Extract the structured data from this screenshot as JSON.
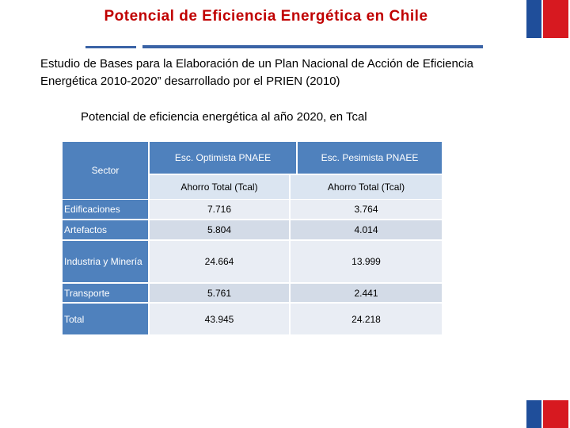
{
  "title": "Potencial de Eficiencia Energética en Chile",
  "intro": "Estudio de Bases para la Elaboración de un Plan Nacional de Acción de Eficiencia Energética 2010-2020” desarrollado por el PRIEN (2010)",
  "subtitle": "Potencial de eficiencia energética al año 2020, en Tcal",
  "table": {
    "sector_header": "Sector",
    "col1_header": "Esc. Optimista PNAEE",
    "col2_header": "Esc. Pesimista PNAEE",
    "col1_sub": "Ahorro Total (Tcal)",
    "col2_sub": "Ahorro Total (Tcal)",
    "rows": [
      {
        "sector": "Edificaciones",
        "optimista": "7.716",
        "pesimista": "3.764"
      },
      {
        "sector": "Artefactos",
        "optimista": "5.804",
        "pesimista": "4.014"
      },
      {
        "sector": "Industria y Minería",
        "optimista": "24.664",
        "pesimista": "13.999"
      },
      {
        "sector": "Transporte",
        "optimista": "5.761",
        "pesimista": "2.441"
      },
      {
        "sector": "Total",
        "optimista": "43.945",
        "pesimista": "24.218"
      }
    ]
  },
  "colors": {
    "title": "#c00000",
    "header_blue": "#4f81bd",
    "flag_blue": "#1f4e9a",
    "flag_red": "#d71920"
  }
}
